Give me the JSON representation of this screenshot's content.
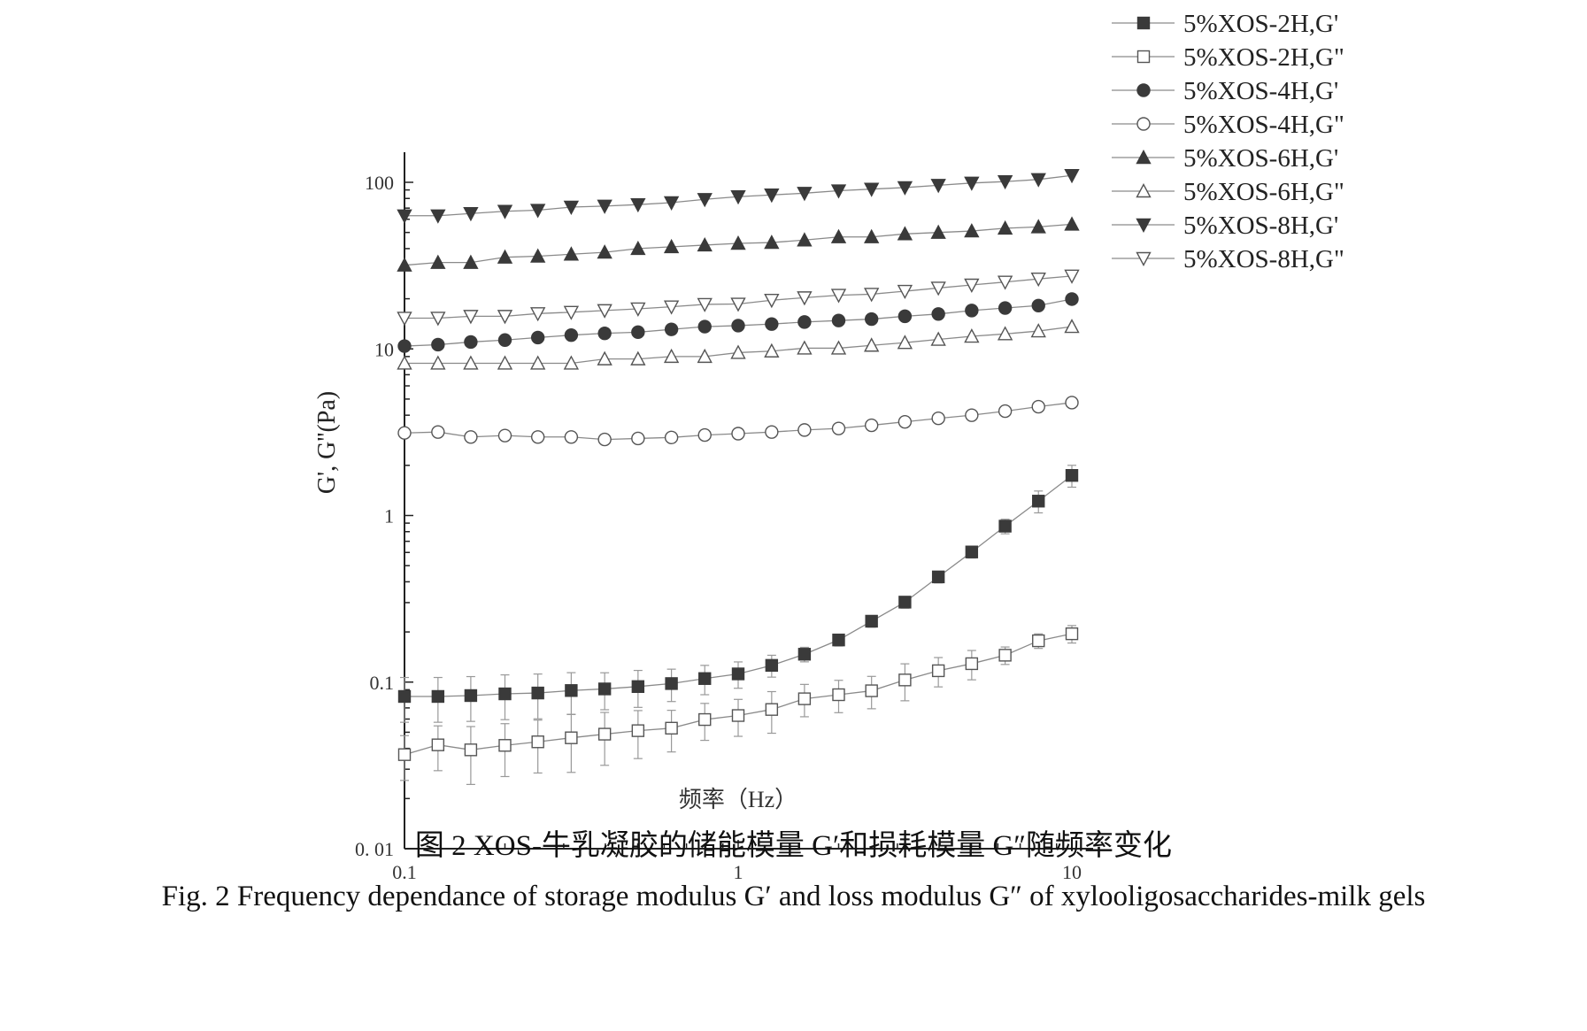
{
  "chart_data": {
    "type": "scatter",
    "x_scale": "log",
    "y_scale": "log",
    "xlabel": "频率（Hz）",
    "ylabel": "G', G''(Pa)",
    "xlim": [
      0.1,
      10
    ],
    "ylim": [
      0.01,
      150
    ],
    "x_ticks": [
      {
        "value": 0.1,
        "label": "0.1"
      },
      {
        "value": 1,
        "label": "1"
      },
      {
        "value": 10,
        "label": "10"
      }
    ],
    "y_ticks": [
      {
        "value": 100,
        "label": "100"
      },
      {
        "value": 10,
        "label": "10"
      },
      {
        "value": 1,
        "label": "1"
      },
      {
        "value": 0.1,
        "label": "0.1"
      },
      {
        "value": 0.01,
        "label": "0. 01"
      }
    ],
    "legend_position": "top-right",
    "x": [
      0.1,
      0.126,
      0.158,
      0.2,
      0.251,
      0.316,
      0.398,
      0.501,
      0.631,
      0.794,
      1,
      1.26,
      1.58,
      2,
      2.51,
      3.16,
      3.98,
      5.01,
      6.31,
      7.94,
      10
    ],
    "series": [
      {
        "name": "5%XOS-2H,G'",
        "marker": "square",
        "filled": true,
        "values": [
          0.082,
          0.082,
          0.083,
          0.085,
          0.086,
          0.089,
          0.091,
          0.094,
          0.098,
          0.105,
          0.112,
          0.126,
          0.147,
          0.179,
          0.232,
          0.302,
          0.428,
          0.604,
          0.863,
          1.22,
          1.74
        ],
        "rel_error": [
          0.3,
          0.3,
          0.3,
          0.3,
          0.3,
          0.28,
          0.25,
          0.25,
          0.22,
          0.2,
          0.18,
          0.15,
          0.1,
          0.08,
          0.08,
          0.08,
          0.08,
          0.08,
          0.1,
          0.15,
          0.15
        ]
      },
      {
        "name": "5%XOS-2H,G\"",
        "marker": "square",
        "filled": false,
        "values": [
          0.0367,
          0.042,
          0.0392,
          0.0417,
          0.0438,
          0.0463,
          0.0487,
          0.0511,
          0.0529,
          0.0596,
          0.063,
          0.0685,
          0.0794,
          0.084,
          0.0887,
          0.103,
          0.117,
          0.129,
          0.145,
          0.177,
          0.195
        ],
        "rel_error": [
          0.3,
          0.3,
          0.38,
          0.35,
          0.35,
          0.38,
          0.35,
          0.32,
          0.28,
          0.25,
          0.25,
          0.28,
          0.22,
          0.22,
          0.22,
          0.25,
          0.2,
          0.2,
          0.12,
          0.1,
          0.12
        ]
      },
      {
        "name": "5%XOS-4H,G'",
        "marker": "circle",
        "filled": true,
        "values": [
          10.4,
          10.6,
          11,
          11.3,
          11.7,
          12.1,
          12.4,
          12.6,
          13.1,
          13.6,
          13.8,
          14.1,
          14.5,
          14.8,
          15.1,
          15.7,
          16.2,
          17,
          17.6,
          18.2,
          19.9
        ]
      },
      {
        "name": "5%XOS-4H,G\"",
        "marker": "circle",
        "filled": false,
        "values": [
          3.13,
          3.17,
          2.96,
          3.02,
          2.96,
          2.96,
          2.86,
          2.9,
          2.94,
          3.04,
          3.1,
          3.17,
          3.26,
          3.33,
          3.48,
          3.65,
          3.83,
          4.0,
          4.23,
          4.5,
          4.76
        ]
      },
      {
        "name": "5%XOS-6H,G'",
        "marker": "triangle-up",
        "filled": true,
        "values": [
          31.8,
          33,
          33,
          35.5,
          36,
          37,
          38,
          40,
          41,
          42,
          43,
          43.5,
          45,
          47,
          47,
          49,
          50,
          51,
          53,
          54,
          56
        ]
      },
      {
        "name": "5%XOS-6H,G\"",
        "marker": "triangle-up",
        "filled": false,
        "values": [
          8.2,
          8.2,
          8.2,
          8.2,
          8.2,
          8.2,
          8.7,
          8.7,
          9.0,
          9.0,
          9.5,
          9.7,
          10.1,
          10.1,
          10.5,
          10.9,
          11.4,
          11.9,
          12.3,
          12.8,
          13.6
        ]
      },
      {
        "name": "5%XOS-8H,G'",
        "marker": "triangle-down",
        "filled": true,
        "values": [
          63,
          63,
          65,
          67,
          68,
          71,
          72,
          73.5,
          75.5,
          79,
          82,
          84,
          86,
          89,
          91,
          93,
          96,
          99,
          101,
          104,
          110
        ]
      },
      {
        "name": "5%XOS-8H,G\"",
        "marker": "triangle-down",
        "filled": false,
        "values": [
          15.3,
          15.3,
          15.7,
          15.7,
          16.3,
          16.6,
          17,
          17.4,
          17.9,
          18.5,
          18.6,
          19.6,
          20.3,
          21,
          21.3,
          22.2,
          23.2,
          24.2,
          25.2,
          26.3,
          27.4
        ]
      }
    ],
    "colors": {
      "marker": "#3a3a3a",
      "line": "#8a8a8a",
      "axis": "#222222"
    }
  },
  "caption": {
    "chinese": "图 2 XOS-牛乳凝胶的储能模量 G′和损耗模量 G″随频率变化",
    "english": "Fig. 2 Frequency dependance of storage modulus G′ and loss modulus G″ of xylooligosaccharides-milk gels"
  }
}
